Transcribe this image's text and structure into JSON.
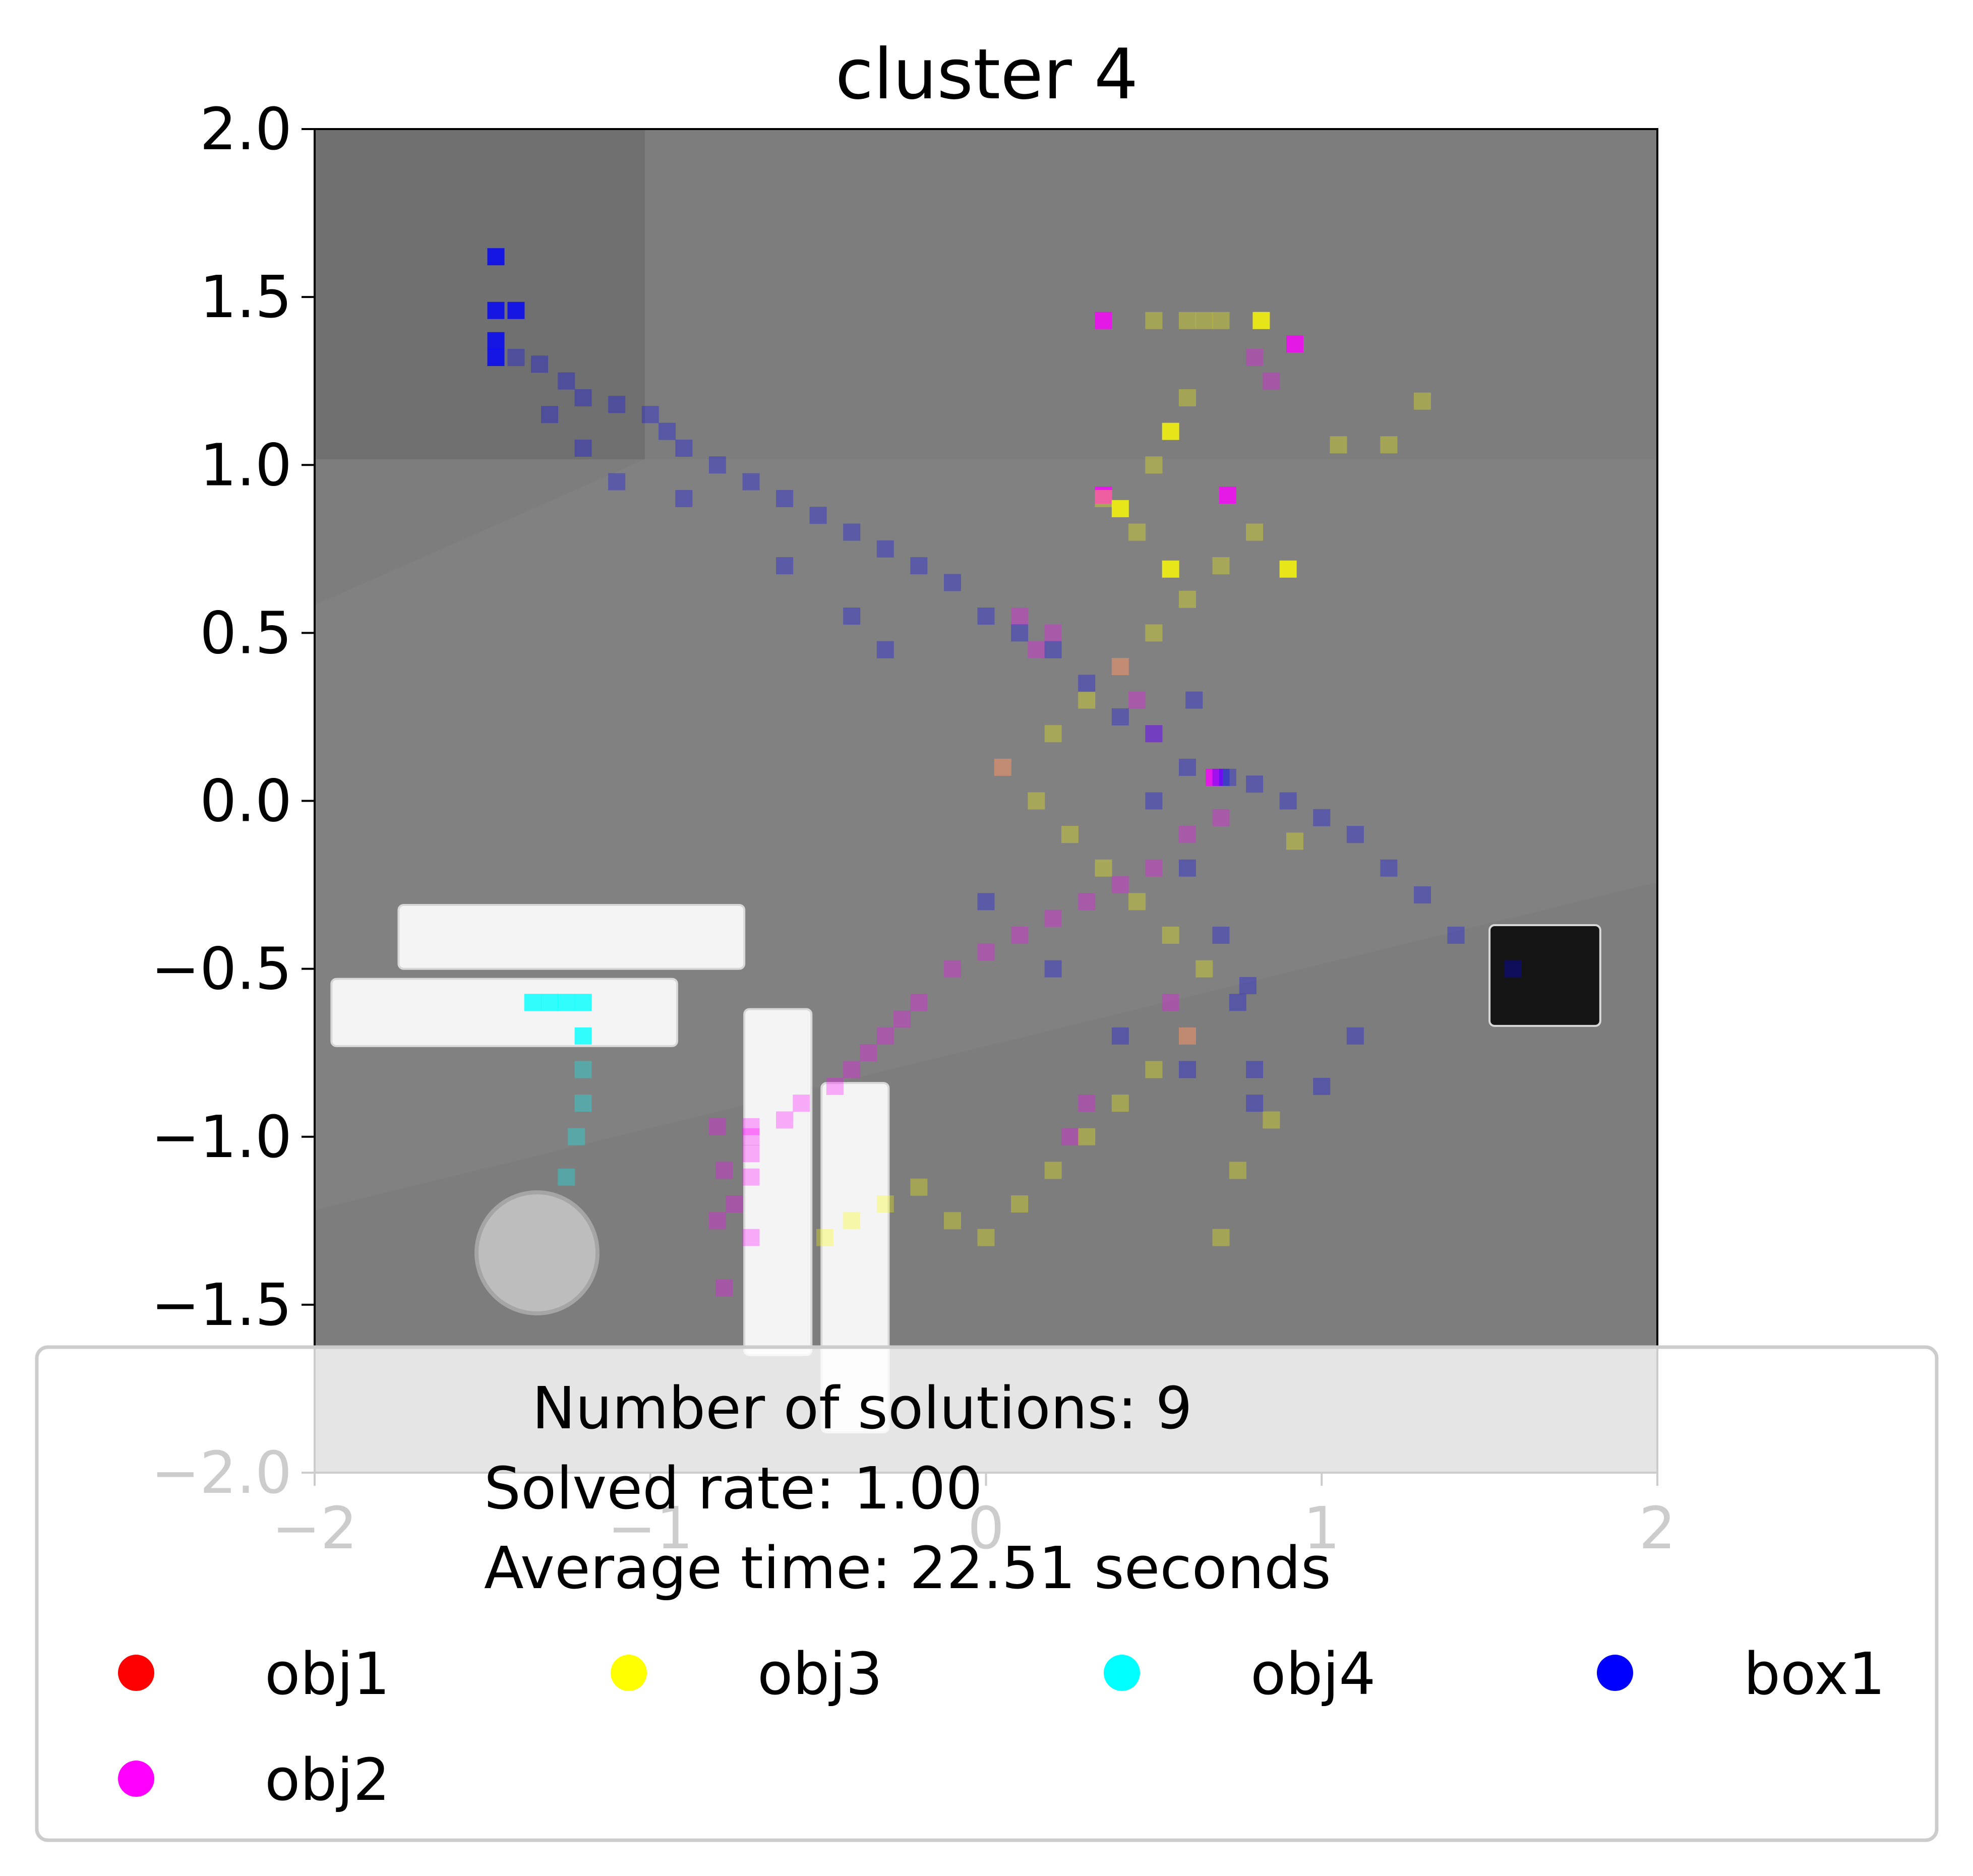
{
  "chart_data": {
    "type": "scatter",
    "title": "cluster 4",
    "xlabel": "",
    "ylabel": "",
    "xlim": [
      -2,
      2
    ],
    "ylim": [
      -2,
      2
    ],
    "x_ticks": [
      -2,
      -1,
      0,
      1,
      2
    ],
    "x_tick_labels": [
      "−2",
      "−1",
      "0",
      "1",
      "2"
    ],
    "y_ticks": [
      2.0,
      1.5,
      1.0,
      0.5,
      0.0,
      -0.5,
      -1.0,
      -1.5,
      -2.0
    ],
    "y_tick_labels": [
      "2.0",
      "1.5",
      "1.0",
      "0.5",
      "0.0",
      "−0.5",
      "−1.0",
      "−1.5",
      "−2.0"
    ],
    "grid": false,
    "background": "rendered tabletop scene (grey) with white bars, a cylinder and a black box",
    "legend": {
      "placement": "lower-center",
      "title_lines": [
        "Number of solutions: 9",
        "Solved rate: 1.00",
        "Average time: 22.51 seconds"
      ],
      "entries": [
        {
          "label": "obj1",
          "color": "#ff0000"
        },
        {
          "label": "obj3",
          "color": "#ffff00"
        },
        {
          "label": "obj4",
          "color": "#00ffff"
        },
        {
          "label": "box1",
          "color": "#0000ff"
        },
        {
          "label": "obj2",
          "color": "#ff00ff"
        }
      ]
    },
    "series": [
      {
        "name": "obj1",
        "color": "#ff0000",
        "x": [],
        "y": []
      },
      {
        "name": "obj2",
        "color": "#ff00ff",
        "x": [
          0.35,
          0.92,
          0.35,
          0.72,
          0.68,
          -0.8,
          -0.7,
          -0.7,
          -0.7,
          -0.75,
          -0.7,
          -0.8,
          -0.78,
          -0.7,
          -0.78,
          -0.6,
          -0.55,
          -0.45,
          -0.4,
          -0.35,
          -0.3,
          -0.25,
          -0.2,
          -0.1,
          0.0,
          0.1,
          0.2,
          0.3,
          0.4,
          0.5,
          0.6,
          0.7,
          0.5,
          0.45,
          0.4,
          0.2,
          0.15,
          0.1,
          0.05,
          0.3,
          0.25,
          0.8,
          0.85,
          0.55,
          0.6
        ],
        "y": [
          1.43,
          1.36,
          0.91,
          0.91,
          0.07,
          -0.97,
          -0.97,
          -1.05,
          -1.12,
          -1.2,
          -1.3,
          -1.25,
          -1.45,
          -1.0,
          -1.1,
          -0.95,
          -0.9,
          -0.85,
          -0.8,
          -0.75,
          -0.7,
          -0.65,
          -0.6,
          -0.5,
          -0.45,
          -0.4,
          -0.35,
          -0.3,
          -0.25,
          -0.2,
          -0.1,
          -0.05,
          0.2,
          0.3,
          0.4,
          0.5,
          0.45,
          0.55,
          0.1,
          -0.9,
          -1.0,
          1.32,
          1.25,
          -0.6,
          -0.7
        ]
      },
      {
        "name": "obj3",
        "color": "#ffff00",
        "x": [
          0.4,
          0.55,
          0.55,
          0.82,
          0.9,
          0.92,
          1.05,
          1.2,
          1.3,
          -0.48,
          -0.4,
          -0.3,
          -0.2,
          -0.1,
          0.0,
          0.1,
          0.2,
          0.3,
          0.4,
          0.5,
          0.6,
          0.7,
          0.75,
          0.85,
          0.65,
          0.55,
          0.45,
          0.35,
          0.25,
          0.15,
          0.05,
          0.2,
          0.3,
          0.4,
          0.5,
          0.6,
          0.7,
          0.8,
          0.5,
          0.6,
          0.65,
          0.7,
          0.6,
          0.5,
          0.45,
          0.35
        ],
        "y": [
          0.87,
          1.1,
          0.69,
          1.43,
          0.69,
          -0.12,
          1.06,
          1.06,
          1.19,
          -1.3,
          -1.25,
          -1.2,
          -1.15,
          -1.25,
          -1.3,
          -1.2,
          -1.1,
          -1.0,
          -0.9,
          -0.8,
          -0.7,
          -1.3,
          -1.1,
          -0.95,
          -0.5,
          -0.4,
          -0.3,
          -0.2,
          -0.1,
          0.0,
          0.1,
          0.2,
          0.3,
          0.4,
          0.5,
          0.6,
          0.7,
          0.8,
          1.43,
          1.43,
          1.43,
          1.43,
          1.2,
          1.0,
          0.8,
          0.9
        ]
      },
      {
        "name": "obj4",
        "color": "#00ffff",
        "x": [
          -1.35,
          -1.3,
          -1.25,
          -1.2,
          -1.2,
          -1.2,
          -1.2,
          -1.22,
          -1.25
        ],
        "y": [
          -0.6,
          -0.6,
          -0.6,
          -0.6,
          -0.7,
          -0.8,
          -0.9,
          -1.0,
          -1.12
        ]
      },
      {
        "name": "box1",
        "color": "#0000ff",
        "x": [
          -1.46,
          -1.46,
          -1.4,
          -1.46,
          -1.46,
          -1.4,
          -1.33,
          -1.25,
          -1.2,
          -1.1,
          -1.0,
          -0.95,
          -0.9,
          -0.8,
          -0.7,
          -0.6,
          -0.5,
          -0.4,
          -0.3,
          -0.2,
          -0.1,
          0.0,
          0.1,
          0.2,
          0.3,
          0.4,
          0.5,
          0.6,
          0.7,
          0.8,
          0.9,
          1.0,
          1.1,
          1.2,
          1.3,
          1.4,
          1.57,
          0.78,
          0.72,
          0.62,
          -0.4,
          -0.3,
          -0.6,
          -0.9,
          -1.1,
          -1.2,
          -1.3,
          0.0,
          0.2,
          0.4,
          0.6,
          0.8,
          1.0,
          1.1,
          0.5,
          0.6,
          0.7,
          0.75,
          0.8
        ],
        "y": [
          1.62,
          1.46,
          1.46,
          1.37,
          1.32,
          1.32,
          1.3,
          1.25,
          1.2,
          1.18,
          1.15,
          1.1,
          1.05,
          1.0,
          0.95,
          0.9,
          0.85,
          0.8,
          0.75,
          0.7,
          0.65,
          0.55,
          0.5,
          0.45,
          0.35,
          0.25,
          0.2,
          0.1,
          0.07,
          0.05,
          0.0,
          -0.05,
          -0.1,
          -0.2,
          -0.28,
          -0.4,
          -0.5,
          -0.55,
          0.07,
          0.3,
          0.55,
          0.45,
          0.7,
          0.9,
          0.95,
          1.05,
          1.15,
          -0.3,
          -0.5,
          -0.7,
          -0.8,
          -0.9,
          -0.85,
          -0.7,
          0.0,
          -0.2,
          -0.4,
          -0.6,
          -0.8
        ]
      }
    ],
    "scene_objects": [
      {
        "name": "bar-1",
        "color": "#f4f4f4",
        "x0": -1.75,
        "x1": -0.72,
        "y0": -0.5,
        "y1": -0.31
      },
      {
        "name": "bar-2",
        "color": "#f4f4f4",
        "x0": -1.95,
        "x1": -0.92,
        "y0": -0.73,
        "y1": -0.53
      },
      {
        "name": "post-1",
        "color": "#f4f4f4",
        "x0": -0.72,
        "x1": -0.52,
        "y0": -1.65,
        "y1": -0.62
      },
      {
        "name": "post-2",
        "color": "#f4f4f4",
        "x0": -0.49,
        "x1": -0.29,
        "y0": -1.88,
        "y1": -0.84
      },
      {
        "name": "box-object",
        "color": "#151515",
        "x0": 1.5,
        "x1": 1.83,
        "y0": -0.67,
        "y1": -0.37
      }
    ]
  }
}
